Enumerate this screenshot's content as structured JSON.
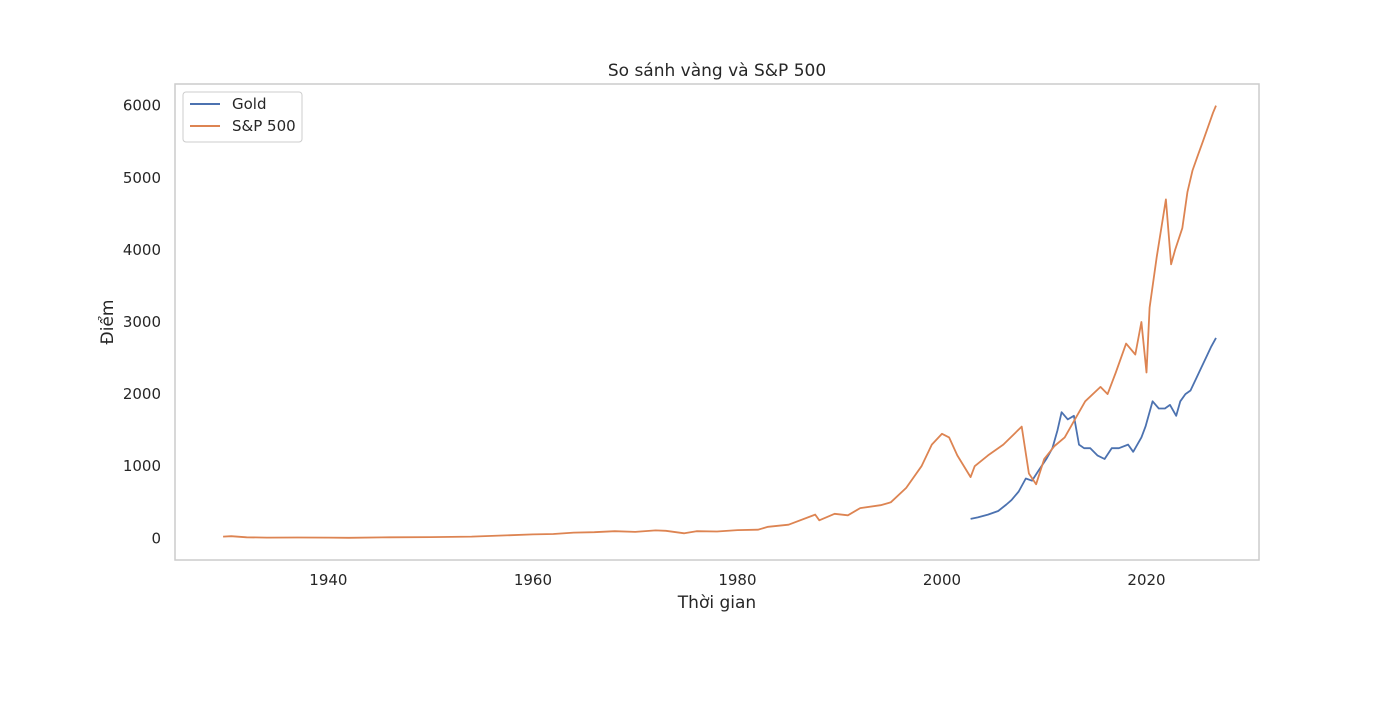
{
  "chart_data": {
    "type": "line",
    "title": "So sánh vàng và S&P 500",
    "xlabel": "Thời gian",
    "ylabel": "Điểm",
    "xlim": [
      1925,
      2031
    ],
    "ylim": [
      -300,
      6300
    ],
    "grid": false,
    "legend_position": "top-left",
    "x_ticks": [
      1940,
      1960,
      1980,
      2000,
      2020
    ],
    "y_ticks": [
      0,
      1000,
      2000,
      3000,
      4000,
      5000,
      6000
    ],
    "series": [
      {
        "name": "Gold",
        "color": "#4c72b0",
        "x": [
          2002.8,
          2003.5,
          2004.5,
          2005.5,
          2006.3,
          2006.8,
          2007.5,
          2008.2,
          2008.8,
          2009.5,
          2010.2,
          2010.8,
          2011.3,
          2011.7,
          2012.3,
          2012.9,
          2013.4,
          2013.9,
          2014.5,
          2015.2,
          2015.9,
          2016.6,
          2017.3,
          2018.2,
          2018.7,
          2019.5,
          2019.9,
          2020.6,
          2021.2,
          2021.8,
          2022.3,
          2022.9,
          2023.3,
          2023.8,
          2024.3,
          2024.8,
          2025.3,
          2025.8,
          2026.3,
          2026.8
        ],
        "y": [
          270,
          290,
          330,
          380,
          470,
          530,
          650,
          830,
          800,
          950,
          1100,
          1250,
          1500,
          1750,
          1650,
          1700,
          1300,
          1250,
          1250,
          1150,
          1100,
          1250,
          1250,
          1300,
          1200,
          1400,
          1550,
          1900,
          1800,
          1800,
          1850,
          1700,
          1900,
          2000,
          2050,
          2200,
          2350,
          2500,
          2650,
          2780
        ]
      },
      {
        "name": "S&P 500",
        "color": "#dd8452",
        "x": [
          1929.7,
          1930.5,
          1932.0,
          1934.0,
          1937.0,
          1940.0,
          1942.0,
          1946.0,
          1950.0,
          1954.0,
          1957.0,
          1960.0,
          1962.0,
          1964.0,
          1966.0,
          1968.0,
          1970.0,
          1972.0,
          1973.0,
          1974.8,
          1976.0,
          1978.0,
          1980.0,
          1982.0,
          1983.0,
          1985.0,
          1987.6,
          1988.0,
          1989.5,
          1990.8,
          1992.0,
          1994.0,
          1995.0,
          1996.5,
          1998.0,
          1999.0,
          2000.0,
          2000.7,
          2001.5,
          2002.8,
          2003.2,
          2004.5,
          2006.0,
          2007.8,
          2008.5,
          2009.2,
          2010.0,
          2011.0,
          2012.0,
          2013.0,
          2014.0,
          2015.5,
          2016.2,
          2017.0,
          2018.0,
          2018.9,
          2019.5,
          2020.0,
          2020.3,
          2021.0,
          2021.9,
          2022.4,
          2022.8,
          2023.5,
          2024.0,
          2024.5,
          2025.0,
          2025.5,
          2026.0,
          2026.5,
          2026.8
        ],
        "y": [
          25,
          30,
          15,
          10,
          12,
          10,
          8,
          15,
          18,
          25,
          40,
          55,
          60,
          80,
          85,
          100,
          90,
          110,
          105,
          70,
          100,
          95,
          115,
          120,
          160,
          190,
          330,
          250,
          340,
          320,
          420,
          460,
          500,
          700,
          1000,
          1300,
          1450,
          1400,
          1150,
          850,
          1000,
          1150,
          1300,
          1550,
          900,
          750,
          1100,
          1280,
          1400,
          1650,
          1900,
          2100,
          2000,
          2300,
          2700,
          2550,
          3000,
          2300,
          3200,
          3900,
          4700,
          3800,
          4000,
          4300,
          4800,
          5100,
          5300,
          5500,
          5700,
          5900,
          6000
        ]
      }
    ]
  }
}
